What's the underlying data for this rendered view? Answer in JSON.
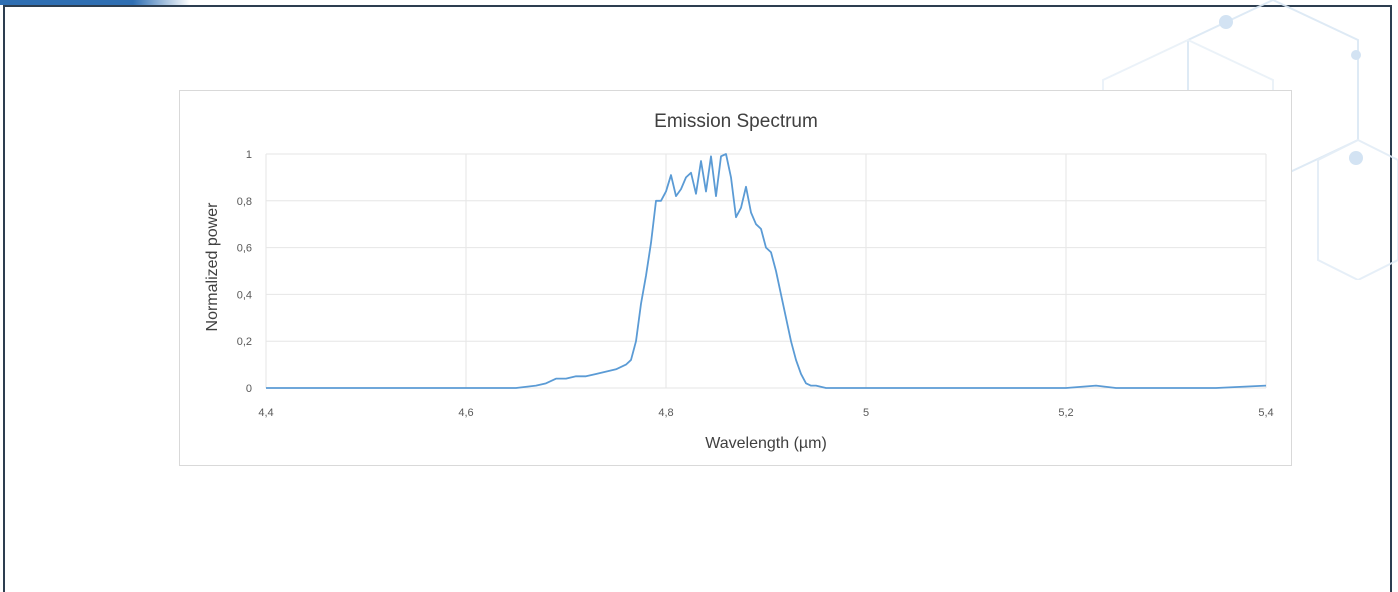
{
  "chart_data": {
    "type": "line",
    "title": "Emission Spectrum",
    "xlabel": "Wavelength (µm)",
    "ylabel": "Normalized power",
    "xlim": [
      4.4,
      5.4
    ],
    "ylim": [
      0,
      1
    ],
    "x_ticks": [
      "4,4",
      "4,6",
      "4,8",
      "5",
      "5,2",
      "5,4"
    ],
    "x_tick_values": [
      4.4,
      4.6,
      4.8,
      5.0,
      5.2,
      5.4
    ],
    "y_ticks": [
      "0",
      "0,2",
      "0,4",
      "0,6",
      "0,8",
      "1"
    ],
    "y_tick_values": [
      0,
      0.2,
      0.4,
      0.6,
      0.8,
      1.0
    ],
    "grid": true,
    "color": "#5b9bd5",
    "series": [
      {
        "x": [
          4.4,
          4.45,
          4.5,
          4.55,
          4.6,
          4.65,
          4.67,
          4.68,
          4.69,
          4.7,
          4.71,
          4.72,
          4.73,
          4.74,
          4.75,
          4.76,
          4.765,
          4.77,
          4.775,
          4.78,
          4.785,
          4.79,
          4.795,
          4.8,
          4.805,
          4.81,
          4.815,
          4.82,
          4.825,
          4.83,
          4.835,
          4.84,
          4.845,
          4.85,
          4.855,
          4.86,
          4.865,
          4.87,
          4.875,
          4.88,
          4.885,
          4.89,
          4.895,
          4.9,
          4.905,
          4.91,
          4.915,
          4.92,
          4.925,
          4.93,
          4.935,
          4.94,
          4.945,
          4.95,
          4.96,
          4.97,
          5.0,
          5.05,
          5.1,
          5.15,
          5.2,
          5.23,
          5.25,
          5.3,
          5.35,
          5.4
        ],
        "y": [
          0.0,
          0.0,
          0.0,
          0.0,
          0.0,
          0.0,
          0.01,
          0.02,
          0.04,
          0.04,
          0.05,
          0.05,
          0.06,
          0.07,
          0.08,
          0.1,
          0.12,
          0.2,
          0.36,
          0.48,
          0.62,
          0.8,
          0.8,
          0.84,
          0.91,
          0.82,
          0.85,
          0.9,
          0.92,
          0.83,
          0.97,
          0.84,
          0.99,
          0.82,
          0.99,
          1.0,
          0.9,
          0.73,
          0.77,
          0.86,
          0.75,
          0.7,
          0.68,
          0.6,
          0.58,
          0.5,
          0.4,
          0.3,
          0.2,
          0.12,
          0.06,
          0.02,
          0.01,
          0.01,
          0.0,
          0.0,
          0.0,
          0.0,
          0.0,
          0.0,
          0.0,
          0.01,
          0.0,
          0.0,
          0.0,
          0.01
        ]
      }
    ]
  }
}
